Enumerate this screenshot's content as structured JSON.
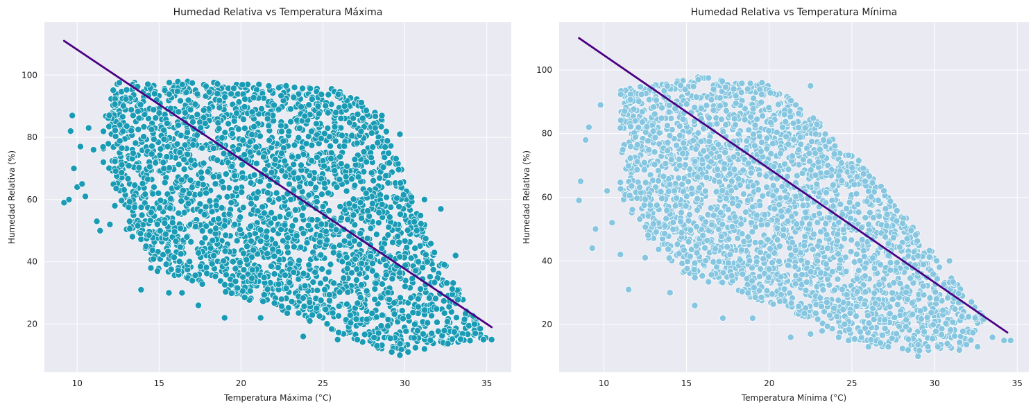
{
  "chart_data": [
    {
      "type": "scatter",
      "title": "Humedad Relativa vs Temperatura Máxima",
      "xlabel": "Temperatura Máxima (°C)",
      "ylabel": "Humedad Relativa (%)",
      "xlim": [
        8.0,
        36.5
      ],
      "ylim": [
        4.5,
        117.0
      ],
      "xticks": [
        10,
        15,
        20,
        25,
        30,
        35
      ],
      "yticks": [
        20,
        40,
        60,
        80,
        100
      ],
      "grid": true,
      "point_color": "#1a9bb5",
      "line_color": "#4b0082",
      "regression_line": {
        "x": [
          9.2,
          35.3
        ],
        "y": [
          111.0,
          19.0
        ]
      },
      "point_cloud": {
        "x_range": [
          9.2,
          35.3
        ],
        "y_range": [
          10,
          99
        ],
        "core_polygon": [
          [
            12,
            98
          ],
          [
            17,
            98
          ],
          [
            26,
            96
          ],
          [
            28.5,
            88
          ],
          [
            30.5,
            60
          ],
          [
            33,
            34
          ],
          [
            35,
            15
          ],
          [
            29,
            11
          ],
          [
            27,
            15
          ],
          [
            22,
            25
          ],
          [
            18,
            32
          ],
          [
            15,
            37
          ],
          [
            13,
            50
          ],
          [
            11.5,
            78
          ]
        ]
      },
      "outliers": [
        [
          9.2,
          59
        ],
        [
          9.5,
          60
        ],
        [
          9.6,
          82
        ],
        [
          9.7,
          87
        ],
        [
          9.8,
          70
        ],
        [
          10,
          64
        ],
        [
          10.2,
          77
        ],
        [
          10.3,
          65
        ],
        [
          10.5,
          61
        ],
        [
          10.7,
          83
        ],
        [
          11,
          76
        ],
        [
          11.2,
          53
        ],
        [
          11.4,
          50
        ],
        [
          11.6,
          72
        ],
        [
          12,
          52
        ],
        [
          12.3,
          58
        ],
        [
          13.2,
          53
        ],
        [
          13.9,
          31
        ],
        [
          14.2,
          45
        ],
        [
          14.5,
          38
        ],
        [
          14.9,
          37
        ],
        [
          15.6,
          30
        ],
        [
          16.4,
          30
        ],
        [
          17.4,
          26
        ],
        [
          19.0,
          22
        ],
        [
          21.2,
          22
        ],
        [
          23.8,
          16
        ],
        [
          24.2,
          21
        ],
        [
          25.9,
          15
        ],
        [
          27.1,
          15
        ],
        [
          28.3,
          13
        ],
        [
          29.2,
          11
        ],
        [
          29.7,
          10
        ],
        [
          30.2,
          11
        ],
        [
          31.2,
          12
        ],
        [
          32.2,
          57
        ],
        [
          31.2,
          60
        ],
        [
          29.7,
          81
        ],
        [
          28.6,
          87
        ],
        [
          33.1,
          42
        ],
        [
          34.3,
          17
        ],
        [
          34.8,
          15
        ],
        [
          35.3,
          15
        ]
      ]
    },
    {
      "type": "scatter",
      "title": "Humedad Relativa vs Temperatura Mínima",
      "xlabel": "Temperatura Mínima (°C)",
      "ylabel": "Humedad Relativa (%)",
      "xlim": [
        7.3,
        35.7
      ],
      "ylim": [
        5.0,
        115.0
      ],
      "xticks": [
        10,
        15,
        20,
        25,
        30,
        35
      ],
      "yticks": [
        20,
        40,
        60,
        80,
        100
      ],
      "grid": true,
      "point_color": "#87c6e0",
      "line_color": "#4b0082",
      "regression_line": {
        "x": [
          8.5,
          34.4
        ],
        "y": [
          110.0,
          17.5
        ]
      },
      "point_cloud": {
        "x_range": [
          8.5,
          34.6
        ],
        "y_range": [
          10,
          99
        ],
        "core_polygon": [
          [
            11,
            94
          ],
          [
            16,
            98
          ],
          [
            20,
            96
          ],
          [
            24,
            80
          ],
          [
            27,
            62
          ],
          [
            30,
            42
          ],
          [
            33,
            22
          ],
          [
            32,
            13
          ],
          [
            28,
            11
          ],
          [
            25,
            15
          ],
          [
            21,
            25
          ],
          [
            18,
            30
          ],
          [
            15,
            35
          ],
          [
            13,
            45
          ],
          [
            11,
            60
          ]
        ]
      },
      "outliers": [
        [
          8.5,
          59
        ],
        [
          8.6,
          65
        ],
        [
          8.9,
          78
        ],
        [
          9.1,
          82
        ],
        [
          9.3,
          44
        ],
        [
          9.5,
          50
        ],
        [
          9.8,
          89
        ],
        [
          10.2,
          62
        ],
        [
          10.5,
          52
        ],
        [
          11,
          42
        ],
        [
          11.5,
          31
        ],
        [
          12.5,
          41
        ],
        [
          14,
          30
        ],
        [
          15.5,
          26
        ],
        [
          17.2,
          22
        ],
        [
          19,
          22
        ],
        [
          21.3,
          16
        ],
        [
          22.5,
          17
        ],
        [
          23.2,
          18
        ],
        [
          22.5,
          95
        ],
        [
          24.2,
          16
        ],
        [
          24.8,
          15
        ],
        [
          26,
          13
        ],
        [
          27.2,
          13
        ],
        [
          28.4,
          12
        ],
        [
          29,
          10
        ],
        [
          29.6,
          13
        ],
        [
          30.2,
          13
        ],
        [
          31.5,
          12
        ],
        [
          32.6,
          13
        ],
        [
          33.5,
          16
        ],
        [
          34.2,
          15
        ],
        [
          34.6,
          15
        ],
        [
          30.9,
          40
        ]
      ]
    }
  ]
}
